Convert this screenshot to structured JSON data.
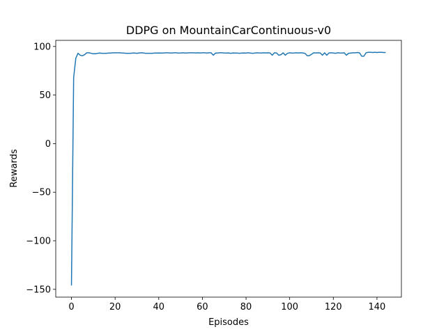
{
  "chart_data": {
    "type": "line",
    "title": "DDPG on MountainCarContinuous-v0",
    "xlabel": "Episodes",
    "ylabel": "Rewards",
    "x": [
      0,
      1,
      2,
      3,
      4,
      5,
      6,
      7,
      8,
      9,
      10,
      11,
      12,
      13,
      14,
      15,
      16,
      17,
      18,
      19,
      20,
      21,
      22,
      23,
      24,
      25,
      26,
      27,
      28,
      29,
      30,
      31,
      32,
      33,
      34,
      35,
      36,
      37,
      38,
      39,
      40,
      41,
      42,
      43,
      44,
      45,
      46,
      47,
      48,
      49,
      50,
      51,
      52,
      53,
      54,
      55,
      56,
      57,
      58,
      59,
      60,
      61,
      62,
      63,
      64,
      65,
      66,
      67,
      68,
      69,
      70,
      71,
      72,
      73,
      74,
      75,
      76,
      77,
      78,
      79,
      80,
      81,
      82,
      83,
      84,
      85,
      86,
      87,
      88,
      89,
      90,
      91,
      92,
      93,
      94,
      95,
      96,
      97,
      98,
      99,
      100,
      101,
      102,
      103,
      104,
      105,
      106,
      107,
      108,
      109,
      110,
      111,
      112,
      113,
      114,
      115,
      116,
      117,
      118,
      119,
      120,
      121,
      122,
      123,
      124,
      125,
      126,
      127,
      128,
      129,
      130,
      131,
      132,
      133,
      134,
      135,
      136,
      137,
      138,
      139,
      140,
      141,
      142,
      143,
      144
    ],
    "series": [
      {
        "name": "Rewards",
        "color": "#1f77b4",
        "values": [
          -146,
          68,
          88,
          93,
          91,
          90.5,
          91.5,
          93.5,
          93.5,
          93,
          92.5,
          92.5,
          93,
          93.2,
          93,
          93,
          93,
          93.2,
          93.2,
          93.5,
          93.5,
          93.5,
          93.5,
          93.3,
          93.2,
          93,
          93,
          93,
          93.2,
          93.2,
          93,
          93.3,
          93.5,
          93.3,
          93,
          93,
          93,
          93,
          93.2,
          93.2,
          93.3,
          93.2,
          93.2,
          93.5,
          93.5,
          93.3,
          93.3,
          93.5,
          93.5,
          93.2,
          93.3,
          93.5,
          93.3,
          93.3,
          93.5,
          93.5,
          93.5,
          93.3,
          93.5,
          93.3,
          93.5,
          93.5,
          93.3,
          93.5,
          93.5,
          91,
          93.2,
          93.3,
          93.5,
          93.5,
          93.3,
          93.2,
          93.3,
          93,
          93.3,
          93.2,
          93.2,
          93,
          93.2,
          93.3,
          93.2,
          93.5,
          93.2,
          93,
          93.2,
          93.5,
          93.3,
          93.3,
          93.5,
          93.3,
          93.5,
          93.3,
          91,
          93.5,
          93.3,
          91,
          91.5,
          93.5,
          91,
          93,
          93.5,
          93.2,
          93.3,
          93.5,
          93.3,
          93.5,
          93.3,
          93,
          90.5,
          90.5,
          92,
          93.5,
          93.3,
          93.5,
          93.3,
          91,
          93.5,
          91,
          93.3,
          93.5,
          93.3,
          93,
          93.5,
          93.3,
          93.2,
          93.5,
          91,
          93,
          93.2,
          93.5,
          93.5,
          93.8,
          93.5,
          90,
          90,
          93.5,
          94,
          94,
          93.8,
          94,
          93.8,
          94,
          94,
          93.8,
          93.8
        ]
      }
    ],
    "xlim": [
      -7.2,
      151.2
    ],
    "ylim": [
      -158,
      106.3
    ],
    "xticks": [
      0,
      20,
      40,
      60,
      80,
      100,
      120,
      140
    ],
    "yticks": [
      {
        "value": -150,
        "label": "−150"
      },
      {
        "value": -100,
        "label": "−100"
      },
      {
        "value": -50,
        "label": "−50"
      },
      0,
      50,
      100
    ]
  }
}
